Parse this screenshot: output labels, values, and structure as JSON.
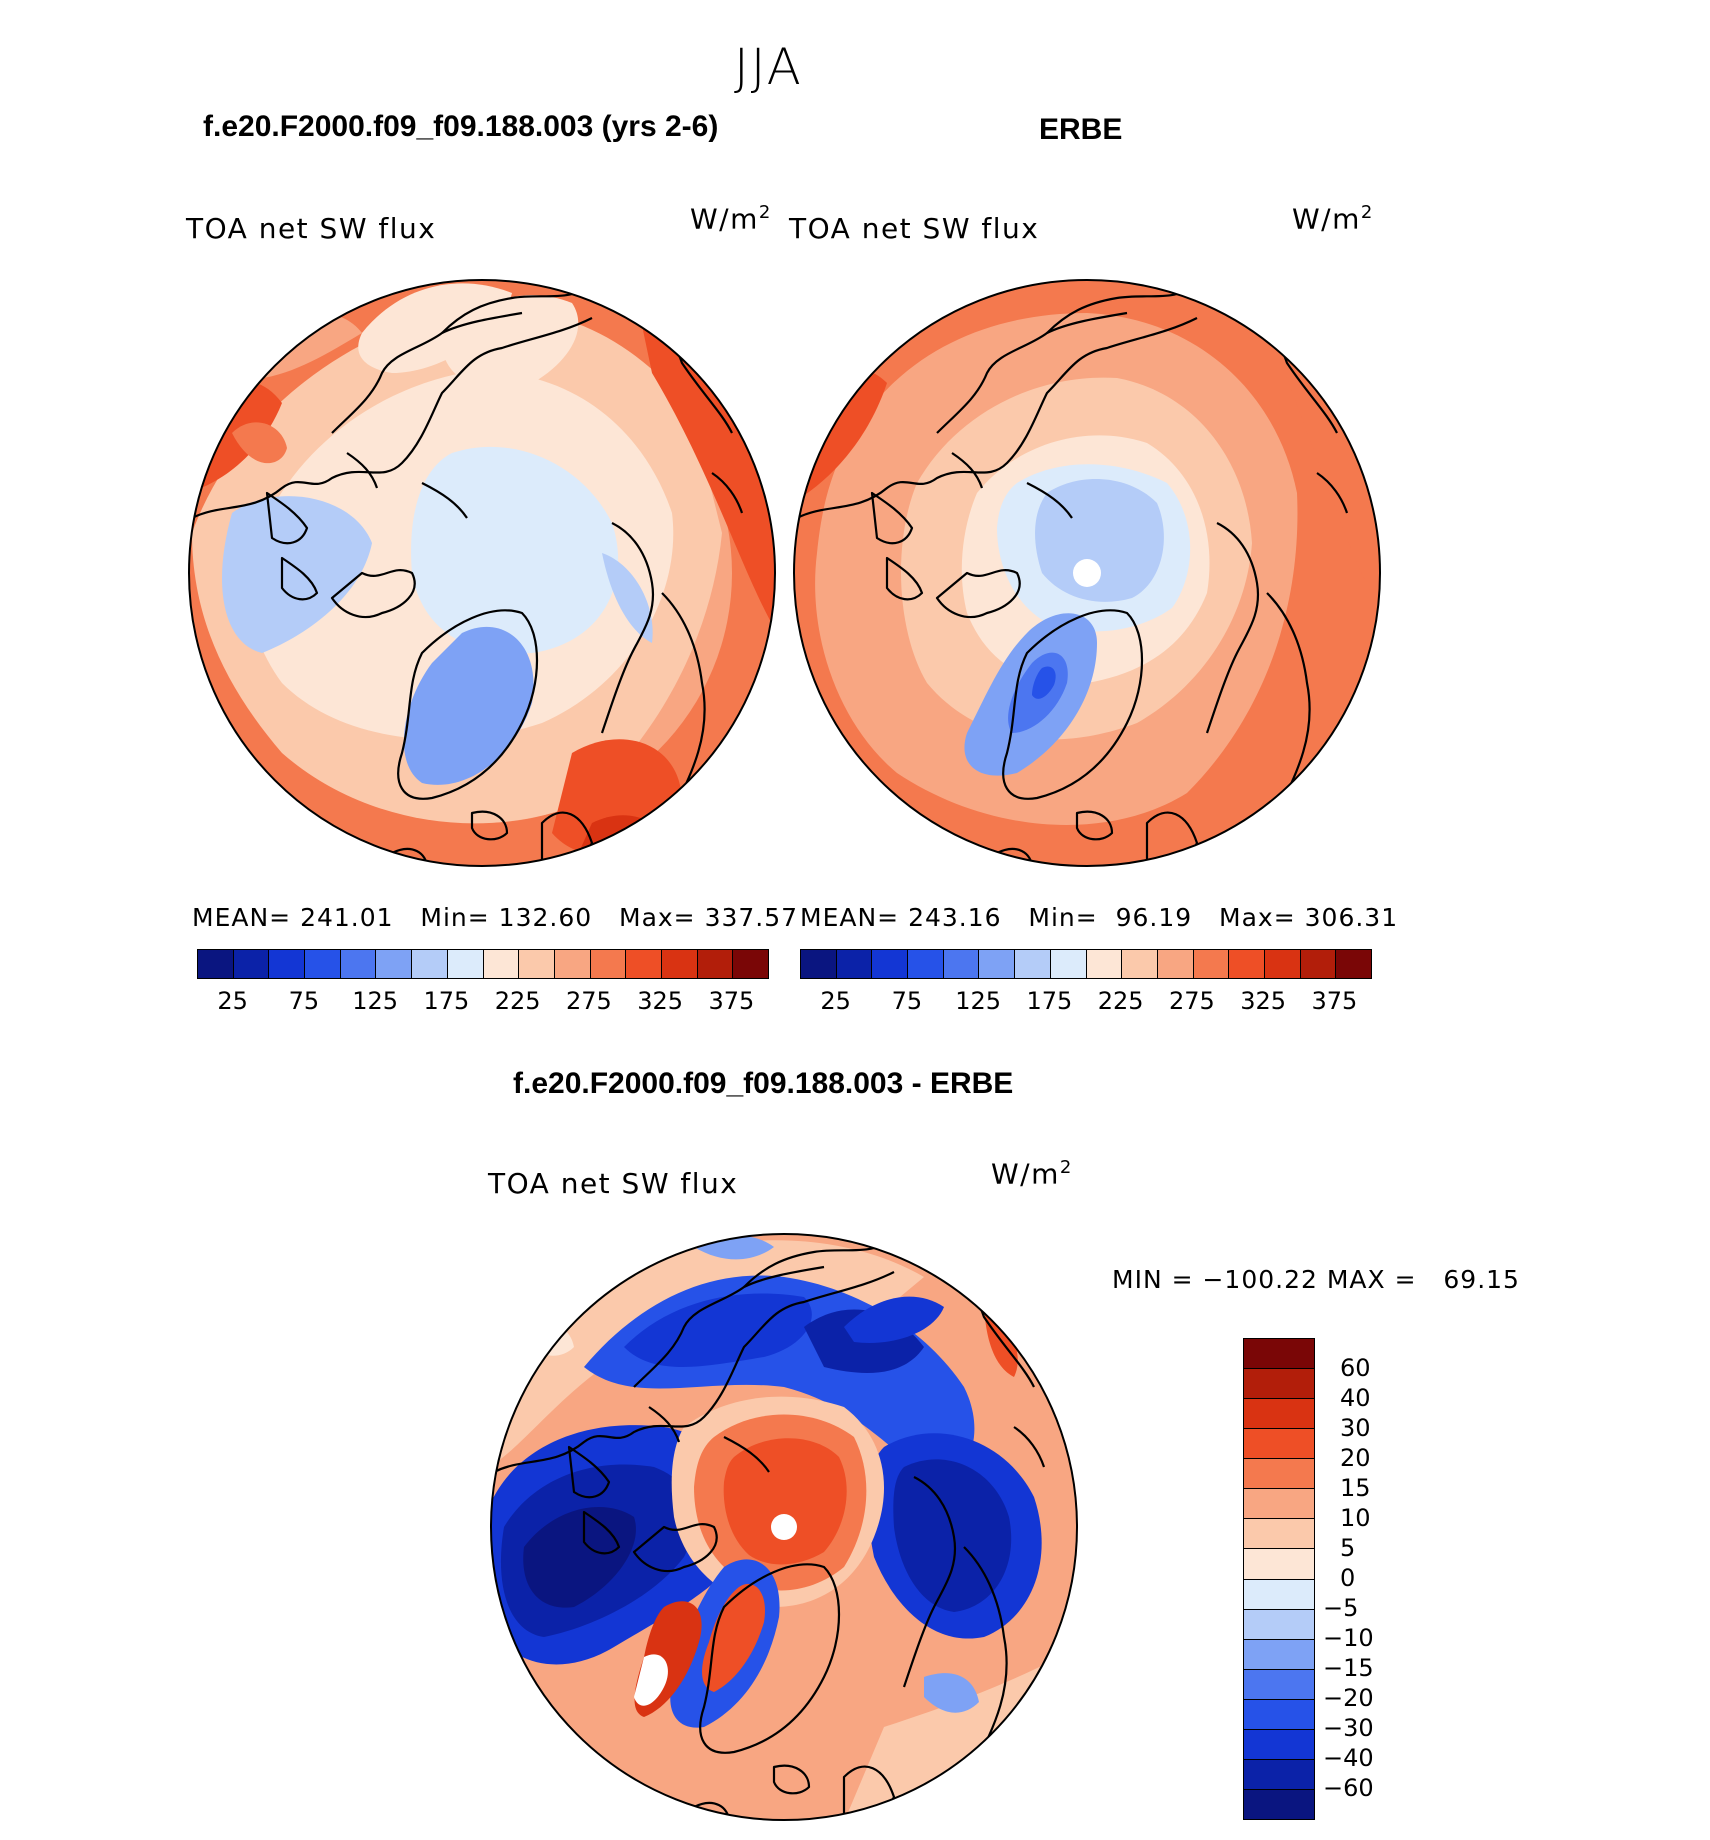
{
  "figure": {
    "season": "JJA",
    "left_title": "f.e20.F2000.f09_f09.188.003 (yrs 2-6)",
    "right_title": "ERBE",
    "diff_title": "f.e20.F2000.f09_f09.188.003 - ERBE"
  },
  "colors": {
    "abs_scale": [
      "#0a1580",
      "#0b22a8",
      "#1336d4",
      "#2652e8",
      "#4c76f0",
      "#7ea2f5",
      "#b4ccf8",
      "#dcebfb",
      "#fde6d6",
      "#fbc9ab",
      "#f8a682",
      "#f4794e",
      "#ee4f26",
      "#d93312",
      "#b21e0a",
      "#7a0606"
    ],
    "diff_scale": [
      "#0a1580",
      "#0b22a8",
      "#1336d4",
      "#2652e8",
      "#4c76f0",
      "#7ea2f5",
      "#b4ccf8",
      "#dcebfb",
      "#fde6d6",
      "#fbc9ab",
      "#f8a682",
      "#f4794e",
      "#ee4f26",
      "#d93312",
      "#b21e0a",
      "#7a0606"
    ]
  },
  "chart_data": [
    {
      "type": "heatmap",
      "projection": "north polar stereographic",
      "title": "f.e20.F2000.f09_f09.188.003 (yrs 2-6)",
      "variable": "TOA net SW flux",
      "units": "W/m",
      "units_exp": "2",
      "stats": {
        "mean_label": "MEAN=",
        "mean": "241.01",
        "min_label": "Min=",
        "min": "132.60",
        "max_label": "Max=",
        "max": "337.57"
      },
      "levels": [
        25,
        50,
        75,
        100,
        125,
        150,
        175,
        200,
        225,
        250,
        275,
        300,
        325,
        350,
        375
      ],
      "colorbar_ticks": [
        "25",
        "75",
        "125",
        "175",
        "225",
        "275",
        "325",
        "375"
      ]
    },
    {
      "type": "heatmap",
      "projection": "north polar stereographic",
      "title": "ERBE",
      "variable": "TOA net SW flux",
      "units": "W/m",
      "units_exp": "2",
      "stats": {
        "mean_label": "MEAN=",
        "mean": "243.16",
        "min_label": "Min=",
        "min": "96.19",
        "max_label": "Max=",
        "max": "306.31"
      },
      "levels": [
        25,
        50,
        75,
        100,
        125,
        150,
        175,
        200,
        225,
        250,
        275,
        300,
        325,
        350,
        375
      ],
      "colorbar_ticks": [
        "25",
        "75",
        "125",
        "175",
        "225",
        "275",
        "325",
        "375"
      ]
    },
    {
      "type": "heatmap",
      "projection": "north polar stereographic",
      "title": "f.e20.F2000.f09_f09.188.003 - ERBE",
      "variable": "TOA net SW flux",
      "units": "W/m",
      "units_exp": "2",
      "min_max_text": "MIN = −100.22 MAX =   69.15",
      "levels": [
        -60,
        -40,
        -30,
        -20,
        -15,
        -10,
        -5,
        0,
        5,
        10,
        15,
        20,
        30,
        40,
        60
      ],
      "colorbar_ticks": [
        "60",
        "40",
        "30",
        "20",
        "15",
        "10",
        "5",
        "0",
        "−5",
        "−10",
        "−15",
        "−20",
        "−30",
        "−40",
        "−60"
      ]
    }
  ]
}
